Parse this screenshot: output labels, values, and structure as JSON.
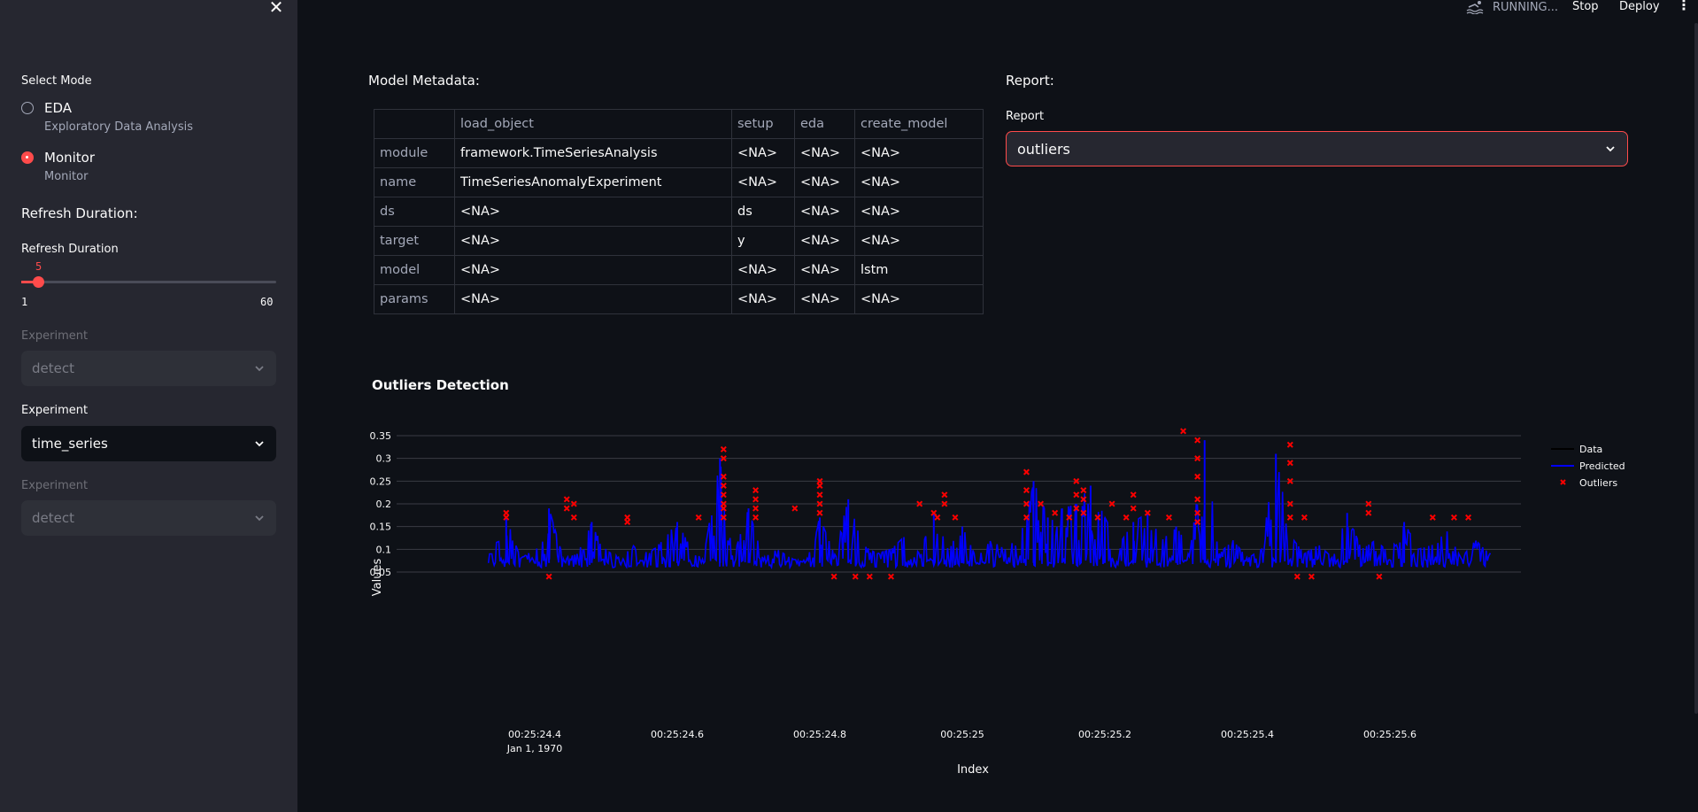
{
  "sidebar": {
    "close_glyph": "✕",
    "mode_label": "Select Mode",
    "modes": [
      {
        "label": "EDA",
        "caption": "Exploratory Data Analysis",
        "checked": false
      },
      {
        "label": "Monitor",
        "caption": "Monitor",
        "checked": true
      }
    ],
    "refresh_heading": "Refresh Duration:",
    "refresh_label": "Refresh Duration",
    "slider": {
      "value": "5",
      "min": "1",
      "max": "60"
    },
    "experiments": [
      {
        "label": "Experiment",
        "value": "detect",
        "disabled": true
      },
      {
        "label": "Experiment",
        "value": "time_series",
        "disabled": false
      },
      {
        "label": "Experiment",
        "value": "detect",
        "disabled": true
      }
    ]
  },
  "topbar": {
    "status": "RUNNING...",
    "stop": "Stop",
    "deploy": "Deploy"
  },
  "metadata": {
    "title": "Model Metadata:",
    "columns": [
      "",
      "load_object",
      "setup",
      "eda",
      "create_model"
    ],
    "rows": [
      [
        "module",
        "framework.TimeSeriesAnalysis",
        "<NA>",
        "<NA>",
        "<NA>"
      ],
      [
        "name",
        "TimeSeriesAnomalyExperiment",
        "<NA>",
        "<NA>",
        "<NA>"
      ],
      [
        "ds",
        "<NA>",
        "ds",
        "<NA>",
        "<NA>"
      ],
      [
        "target",
        "<NA>",
        "y",
        "<NA>",
        "<NA>"
      ],
      [
        "model",
        "<NA>",
        "<NA>",
        "<NA>",
        "lstm"
      ],
      [
        "params",
        "<NA>",
        "<NA>",
        "<NA>",
        "<NA>"
      ]
    ]
  },
  "report": {
    "title": "Report:",
    "label": "Report",
    "value": "outliers"
  },
  "chart_title": "Outliers Detection",
  "colors": {
    "accent": "#ff4b4b",
    "predicted": "#0000ff",
    "outliers": "#ff0000",
    "data": "#000000"
  },
  "chart_data": {
    "type": "line",
    "title": "Outliers Detection",
    "xlabel": "Index",
    "ylabel": "Values",
    "ylim": [
      0.03,
      0.36
    ],
    "xlim": [
      "00:25:24.32",
      "00:25:25.74"
    ],
    "x_ticks": [
      "00:25:24.4",
      "00:25:24.6",
      "00:25:24.8",
      "00:25:25",
      "00:25:25.2",
      "00:25:25.4",
      "00:25:25.6"
    ],
    "x_tick_sublabel": "Jan 1, 1970",
    "y_ticks": [
      0.05,
      0.1,
      0.15,
      0.2,
      0.25,
      0.3,
      0.35
    ],
    "legend": [
      "Data",
      "Predicted",
      "Outliers"
    ],
    "legend_position": "top-right",
    "series": [
      {
        "name": "Predicted",
        "x": [
          24.34,
          24.36,
          24.38,
          24.4,
          24.42,
          24.44,
          24.46,
          24.48,
          24.5,
          24.52,
          24.54,
          24.56,
          24.58,
          24.6,
          24.62,
          24.64,
          24.66,
          24.68,
          24.7,
          24.72,
          24.74,
          24.76,
          24.78,
          24.8,
          24.82,
          24.84,
          24.86,
          24.88,
          24.9,
          24.92,
          24.94,
          24.96,
          24.98,
          25.0,
          25.02,
          25.04,
          25.06,
          25.08,
          25.1,
          25.12,
          25.14,
          25.16,
          25.18,
          25.2,
          25.22,
          25.24,
          25.26,
          25.28,
          25.3,
          25.32,
          25.34,
          25.36,
          25.38,
          25.4,
          25.42,
          25.44,
          25.46,
          25.48,
          25.5,
          25.52,
          25.54,
          25.56,
          25.58,
          25.6,
          25.62,
          25.64,
          25.66,
          25.68,
          25.7,
          25.72,
          25.74
        ],
        "values": [
          0.09,
          0.17,
          0.08,
          0.1,
          0.19,
          0.08,
          0.09,
          0.16,
          0.1,
          0.08,
          0.11,
          0.09,
          0.12,
          0.16,
          0.1,
          0.11,
          0.3,
          0.09,
          0.19,
          0.08,
          0.1,
          0.08,
          0.07,
          0.17,
          0.09,
          0.21,
          0.11,
          0.09,
          0.1,
          0.13,
          0.09,
          0.18,
          0.1,
          0.15,
          0.08,
          0.12,
          0.1,
          0.13,
          0.25,
          0.17,
          0.19,
          0.2,
          0.24,
          0.17,
          0.11,
          0.16,
          0.18,
          0.12,
          0.15,
          0.1,
          0.34,
          0.09,
          0.12,
          0.08,
          0.1,
          0.31,
          0.13,
          0.09,
          0.11,
          0.08,
          0.18,
          0.1,
          0.12,
          0.09,
          0.16,
          0.1,
          0.11,
          0.14,
          0.08,
          0.12,
          0.09
        ]
      },
      {
        "name": "Outliers",
        "x": [
          24.36,
          24.36,
          24.445,
          24.445,
          24.455,
          24.455,
          24.53,
          24.53,
          24.42,
          24.63,
          24.665,
          24.665,
          24.665,
          24.665,
          24.665,
          24.665,
          24.665,
          24.665,
          24.71,
          24.71,
          24.71,
          24.71,
          24.765,
          24.8,
          24.8,
          24.8,
          24.8,
          24.8,
          24.82,
          24.85,
          24.87,
          24.9,
          24.94,
          24.96,
          24.965,
          24.975,
          24.975,
          24.99,
          25.09,
          25.09,
          25.09,
          25.09,
          25.11,
          25.13,
          25.15,
          25.16,
          25.16,
          25.16,
          25.17,
          25.17,
          25.17,
          25.19,
          25.21,
          25.23,
          25.24,
          25.24,
          25.26,
          25.29,
          25.31,
          25.33,
          25.33,
          25.33,
          25.33,
          25.33,
          25.33,
          25.46,
          25.46,
          25.46,
          25.46,
          25.46,
          25.47,
          25.48,
          25.49,
          25.57,
          25.57,
          25.585,
          25.66,
          25.69,
          25.71
        ],
        "values": [
          0.18,
          0.17,
          0.21,
          0.19,
          0.2,
          0.17,
          0.17,
          0.16,
          0.04,
          0.17,
          0.32,
          0.3,
          0.26,
          0.24,
          0.22,
          0.2,
          0.19,
          0.17,
          0.23,
          0.21,
          0.19,
          0.17,
          0.19,
          0.25,
          0.24,
          0.22,
          0.2,
          0.18,
          0.04,
          0.04,
          0.04,
          0.04,
          0.2,
          0.18,
          0.17,
          0.22,
          0.2,
          0.17,
          0.27,
          0.23,
          0.2,
          0.17,
          0.2,
          0.18,
          0.17,
          0.25,
          0.22,
          0.19,
          0.23,
          0.21,
          0.18,
          0.17,
          0.2,
          0.17,
          0.22,
          0.19,
          0.18,
          0.17,
          0.36,
          0.34,
          0.3,
          0.26,
          0.21,
          0.18,
          0.16,
          0.33,
          0.29,
          0.25,
          0.2,
          0.17,
          0.04,
          0.17,
          0.04,
          0.2,
          0.18,
          0.04,
          0.17,
          0.17,
          0.17
        ]
      },
      {
        "name": "Data",
        "values": []
      }
    ]
  }
}
